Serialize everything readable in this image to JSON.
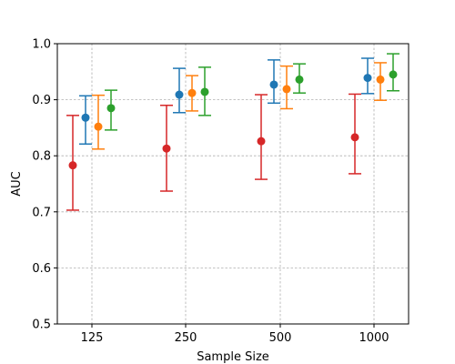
{
  "chart_data": {
    "type": "scatter",
    "title": "",
    "xlabel": "Sample Size",
    "ylabel": "AUC",
    "categories": [
      "125",
      "250",
      "500",
      "1000"
    ],
    "ylim": [
      0.5,
      1.0
    ],
    "yticks": [
      "0.5",
      "0.6",
      "0.7",
      "0.8",
      "0.9",
      "1.0"
    ],
    "grid": true,
    "legend": "none",
    "error_bars": true,
    "series": [
      {
        "color": "#d62728",
        "values": [
          0.783,
          0.813,
          0.826,
          0.833
        ],
        "lower": [
          0.703,
          0.737,
          0.758,
          0.768
        ],
        "upper": [
          0.872,
          0.89,
          0.909,
          0.91
        ]
      },
      {
        "color": "#1f77b4",
        "values": [
          0.868,
          0.909,
          0.927,
          0.939
        ],
        "lower": [
          0.821,
          0.877,
          0.894,
          0.911
        ],
        "upper": [
          0.907,
          0.956,
          0.971,
          0.974
        ]
      },
      {
        "color": "#ff7f0e",
        "values": [
          0.852,
          0.912,
          0.919,
          0.936
        ],
        "lower": [
          0.812,
          0.88,
          0.884,
          0.899
        ],
        "upper": [
          0.908,
          0.943,
          0.96,
          0.966
        ]
      },
      {
        "color": "#2ca02c",
        "values": [
          0.885,
          0.914,
          0.936,
          0.945
        ],
        "lower": [
          0.846,
          0.872,
          0.912,
          0.916
        ],
        "upper": [
          0.917,
          0.958,
          0.964,
          0.982
        ]
      }
    ]
  }
}
